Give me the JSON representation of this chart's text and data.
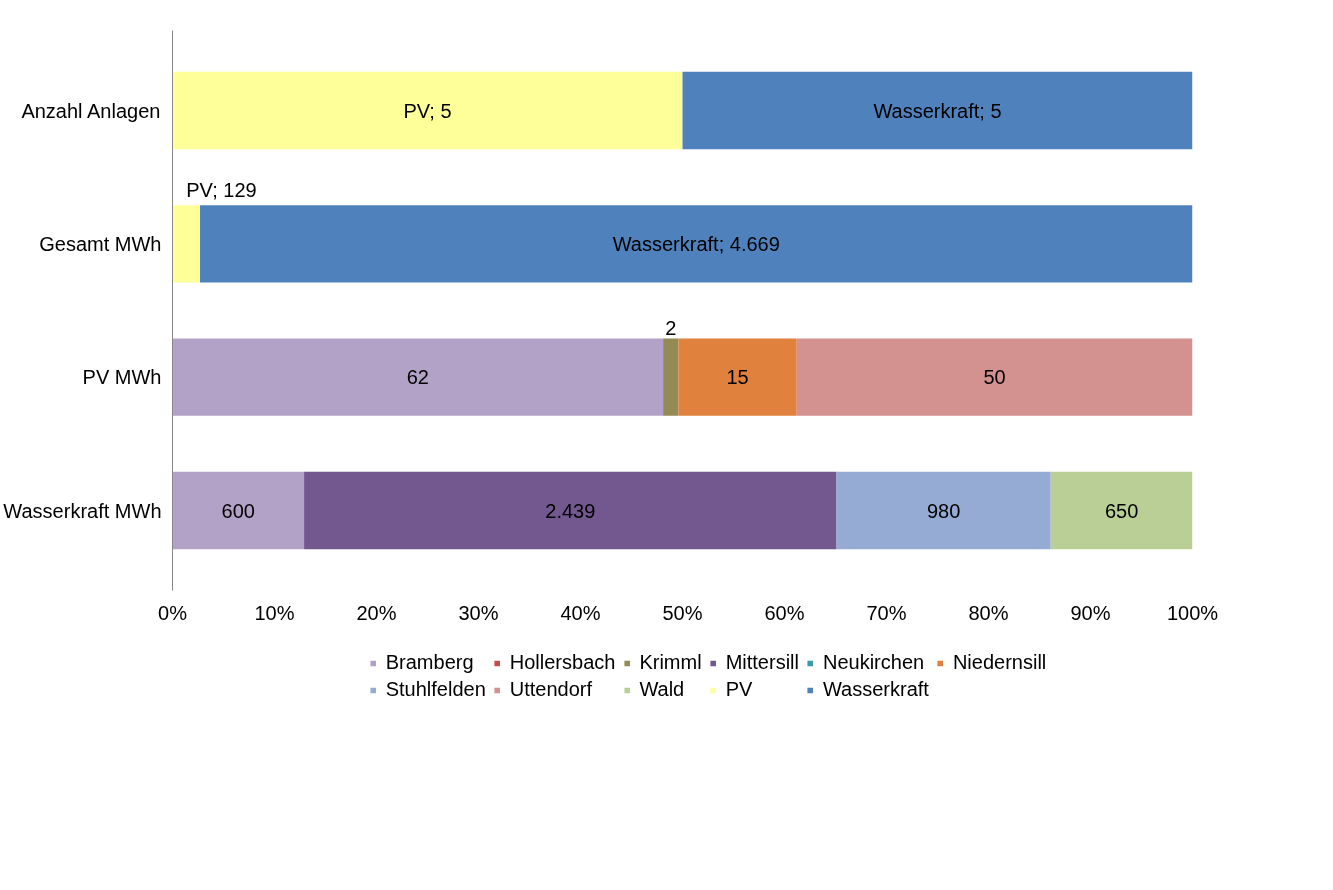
{
  "chart_data": {
    "type": "bar",
    "orientation": "horizontal",
    "stacked": true,
    "categories": [
      "Anzahl Anlagen",
      "Gesamt MWh",
      "PV MWh",
      "Wasserkraft MWh"
    ],
    "xlim": [
      0,
      100
    ],
    "xticks": [
      {
        "value": 0,
        "label": "0%"
      },
      {
        "value": 10,
        "label": "10%"
      },
      {
        "value": 20,
        "label": "20%"
      },
      {
        "value": 30,
        "label": "30%"
      },
      {
        "value": 40,
        "label": "40%"
      },
      {
        "value": 50,
        "label": "50%"
      },
      {
        "value": 60,
        "label": "60%"
      },
      {
        "value": 70,
        "label": "70%"
      },
      {
        "value": 80,
        "label": "80%"
      },
      {
        "value": 90,
        "label": "90%"
      },
      {
        "value": 100,
        "label": "100%"
      }
    ],
    "legend": "bottom",
    "series": [
      {
        "name": "Bramberg",
        "color": "#b3a2c7",
        "values": [
          null,
          null,
          48.1,
          12.9
        ]
      },
      {
        "name": "Hollersbach",
        "color": "#c0504d",
        "values": [
          null,
          null,
          null,
          null
        ]
      },
      {
        "name": "Krimml",
        "color": "#948a54",
        "values": [
          null,
          null,
          1.5,
          null
        ]
      },
      {
        "name": "Mittersill",
        "color": "#72588f",
        "values": [
          null,
          null,
          null,
          52.2
        ]
      },
      {
        "name": "Neukirchen",
        "color": "#3b99ad",
        "values": [
          null,
          null,
          null,
          null
        ]
      },
      {
        "name": "Niedernsill",
        "color": "#e0823d",
        "values": [
          null,
          null,
          11.6,
          null
        ]
      },
      {
        "name": "Stuhlfelden",
        "color": "#95abd4",
        "values": [
          null,
          null,
          null,
          21.0
        ]
      },
      {
        "name": "Uttendorf",
        "color": "#d39190",
        "values": [
          null,
          null,
          38.8,
          null
        ]
      },
      {
        "name": "Wald",
        "color": "#b9cf96",
        "values": [
          null,
          null,
          null,
          13.9
        ]
      },
      {
        "name": "PV",
        "color": "#ffff99",
        "values": [
          50,
          2.7,
          null,
          null
        ]
      },
      {
        "name": "Wasserkraft",
        "color": "#4f81bd",
        "values": [
          50,
          97.3,
          null,
          null
        ]
      }
    ],
    "annotations": [
      "62",
      "600",
      "2",
      "2.439",
      "15",
      "980",
      "50",
      "650",
      "PV; 5",
      "PV; 129",
      "Wasserkraft; 5",
      "Wasserkraft; 4.669"
    ]
  }
}
